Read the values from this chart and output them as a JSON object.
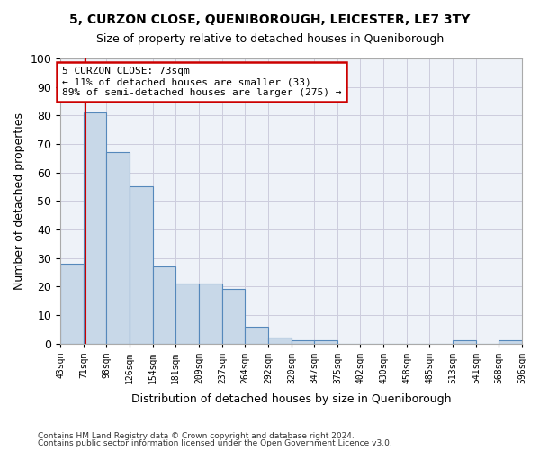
{
  "title": "5, CURZON CLOSE, QUENIBOROUGH, LEICESTER, LE7 3TY",
  "subtitle": "Size of property relative to detached houses in Queniborough",
  "xlabel": "Distribution of detached houses by size in Queniborough",
  "ylabel": "Number of detached properties",
  "footnote1": "Contains HM Land Registry data © Crown copyright and database right 2024.",
  "footnote2": "Contains public sector information licensed under the Open Government Licence v3.0.",
  "annotation_title": "5 CURZON CLOSE: 73sqm",
  "annotation_line1": "← 11% of detached houses are smaller (33)",
  "annotation_line2": "89% of semi-detached houses are larger (275) →",
  "property_line_x": 73,
  "bar_edges": [
    43,
    71,
    98,
    126,
    154,
    181,
    209,
    237,
    264,
    292,
    320,
    347,
    375,
    402,
    430,
    458,
    485,
    513,
    541,
    568,
    596
  ],
  "bar_heights": [
    28,
    81,
    67,
    55,
    27,
    21,
    21,
    19,
    6,
    2,
    1,
    1,
    0,
    0,
    0,
    0,
    0,
    1,
    0,
    1
  ],
  "bar_color": "#c8d8e8",
  "bar_edge_color": "#5588bb",
  "grid_color": "#ccccdd",
  "vline_color": "#cc0000",
  "annotation_border_color": "#cc0000",
  "ylim": [
    0,
    100
  ],
  "yticks": [
    0,
    10,
    20,
    30,
    40,
    50,
    60,
    70,
    80,
    90,
    100
  ],
  "bg_color": "#eef2f8"
}
